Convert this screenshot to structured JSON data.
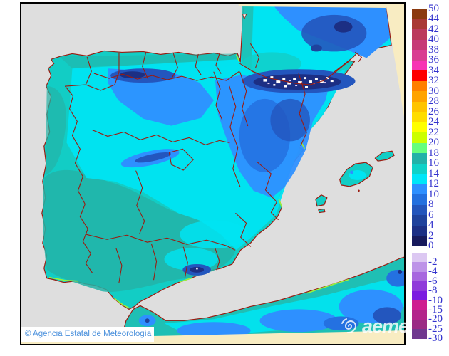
{
  "map": {
    "attribution": "© Agencia Estatal de Meteorología",
    "logo_text": "aemet",
    "colors": {
      "page_bg": "#FFFFFF",
      "sea": "#DEDEDE",
      "outside_domain": "#F8ECC2",
      "coastline": "#9A1B10",
      "frame": "#000000",
      "snow_patch": "#FFFFFF",
      "green_fringe": "#9BF23C",
      "attribution_text": "#4A90DC"
    },
    "palette": {
      "t16": "#23B3A7",
      "t14": "#12CDC5",
      "t12": "#00E4F2",
      "t10": "#2E90FF",
      "t8": "#2471E1",
      "t6": "#2356BE",
      "t4": "#1F429D",
      "t2": "#1C2F84",
      "t0": "#171A5C",
      "tneg": "#DCC8F2"
    }
  },
  "legend": {
    "label_color": "#3232CD",
    "positive": {
      "boundaries": [
        50,
        44,
        42,
        40,
        38,
        36,
        34,
        32,
        30,
        28,
        26,
        24,
        22,
        20,
        18,
        16,
        14,
        12,
        10,
        8,
        6,
        4,
        2,
        0
      ],
      "colors": [
        "#8B3A0F",
        "#A93934",
        "#BB3A5C",
        "#C63A77",
        "#D93D92",
        "#F733B4",
        "#FE0000",
        "#FF7F00",
        "#FFA300",
        "#FFC400",
        "#FFDD00",
        "#FFFF00",
        "#CCFF00",
        "#66FF7D",
        "#22B2A8",
        "#0FD2C8",
        "#00E6F8",
        "#2E90FF",
        "#2370DF",
        "#2355BC",
        "#1F429C",
        "#1C2F85",
        "#171A5C"
      ]
    },
    "negative": {
      "boundaries": [
        -2,
        -4,
        -6,
        -8,
        -10,
        -15,
        -20,
        -25,
        -30
      ],
      "colors": [
        "#DCC8F2",
        "#BD93E8",
        "#A767DF",
        "#8F3BDA",
        "#7B1CE0",
        "#CE1E90",
        "#B3258B",
        "#9A2B84",
        "#70398F"
      ]
    }
  }
}
